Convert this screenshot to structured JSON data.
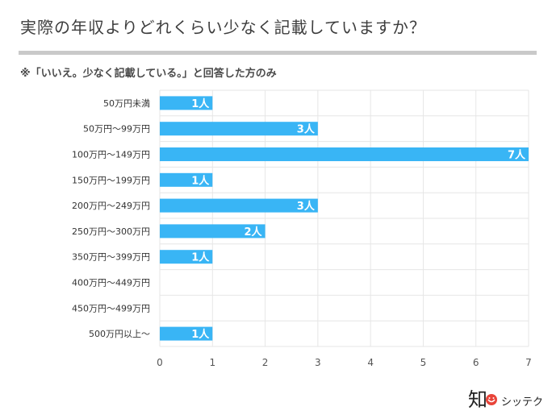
{
  "title": "実際の年収よりどれくらい少なく記載していますか？",
  "subtitle": "※「いいえ。少なく記載している。」と回答した方のみ",
  "brand": {
    "name": "シッテク",
    "logo_char": "知",
    "accent": "#e8443a"
  },
  "colors": {
    "bar": "#39b5f5",
    "grid": "#e6e6e6",
    "label": "#333333"
  },
  "chart_data": {
    "type": "bar",
    "orientation": "horizontal",
    "categories": [
      "50万円未満",
      "50万円〜99万円",
      "100万円〜149万円",
      "150万円〜199万円",
      "200万円〜249万円",
      "250万円〜300万円",
      "350万円〜399万円",
      "400万円〜449万円",
      "450万円〜499万円",
      "500万円以上〜"
    ],
    "values": [
      1,
      3,
      7,
      1,
      3,
      2,
      1,
      0,
      0,
      1
    ],
    "data_labels": [
      "1人",
      "3人",
      "7人",
      "1人",
      "3人",
      "2人",
      "1人",
      "",
      "",
      "1人"
    ],
    "xlim": [
      0,
      7
    ],
    "xticks": [
      "0",
      "1",
      "2",
      "3",
      "4",
      "5",
      "6",
      "7"
    ],
    "grid": true
  }
}
